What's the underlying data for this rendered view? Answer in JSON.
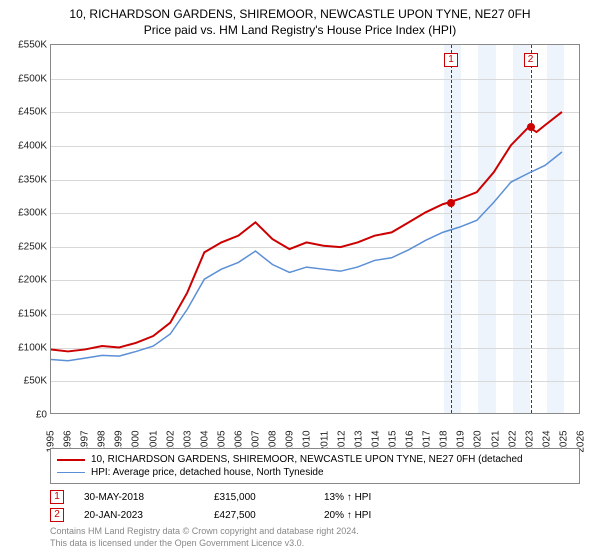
{
  "title_line1": "10, RICHARDSON GARDENS, SHIREMOOR, NEWCASTLE UPON TYNE, NE27 0FH",
  "title_line2": "Price paid vs. HM Land Registry's House Price Index (HPI)",
  "chart": {
    "type": "line",
    "background_color": "#ffffff",
    "grid_color": "#d8d8d8",
    "border_color": "#888888",
    "xlim": [
      1995,
      2026
    ],
    "x_ticks": [
      1995,
      1996,
      1997,
      1998,
      1999,
      2000,
      2001,
      2002,
      2003,
      2004,
      2005,
      2006,
      2007,
      2008,
      2009,
      2010,
      2011,
      2012,
      2013,
      2014,
      2015,
      2016,
      2017,
      2018,
      2019,
      2020,
      2021,
      2022,
      2023,
      2024,
      2025,
      2026
    ],
    "ylim": [
      0,
      550000
    ],
    "y_ticks": [
      0,
      50000,
      100000,
      150000,
      200000,
      250000,
      300000,
      350000,
      400000,
      450000,
      500000,
      550000
    ],
    "y_tick_labels": [
      "£0",
      "£50K",
      "£100K",
      "£150K",
      "£200K",
      "£250K",
      "£300K",
      "£350K",
      "£400K",
      "£450K",
      "£500K",
      "£550K"
    ],
    "shaded_bands": [
      {
        "from": 2018,
        "to": 2019,
        "color": "#eef4fb"
      },
      {
        "from": 2020,
        "to": 2021,
        "color": "#eef4fb"
      },
      {
        "from": 2022,
        "to": 2023,
        "color": "#eef4fb"
      },
      {
        "from": 2024,
        "to": 2025,
        "color": "#eef4fb"
      }
    ],
    "series": [
      {
        "color": "#cc0000",
        "line_width": 2,
        "points": [
          [
            1995,
            95000
          ],
          [
            1996,
            92000
          ],
          [
            1997,
            95000
          ],
          [
            1998,
            100000
          ],
          [
            1999,
            98000
          ],
          [
            2000,
            105000
          ],
          [
            2001,
            115000
          ],
          [
            2002,
            135000
          ],
          [
            2003,
            180000
          ],
          [
            2004,
            240000
          ],
          [
            2005,
            255000
          ],
          [
            2006,
            265000
          ],
          [
            2007,
            285000
          ],
          [
            2008,
            260000
          ],
          [
            2009,
            245000
          ],
          [
            2010,
            255000
          ],
          [
            2011,
            250000
          ],
          [
            2012,
            248000
          ],
          [
            2013,
            255000
          ],
          [
            2014,
            265000
          ],
          [
            2015,
            270000
          ],
          [
            2016,
            285000
          ],
          [
            2017,
            300000
          ],
          [
            2018,
            312000
          ],
          [
            2018.4,
            315000
          ],
          [
            2019,
            320000
          ],
          [
            2020,
            330000
          ],
          [
            2021,
            360000
          ],
          [
            2022,
            400000
          ],
          [
            2023.05,
            427500
          ],
          [
            2023.5,
            420000
          ],
          [
            2024,
            430000
          ],
          [
            2025,
            450000
          ]
        ]
      },
      {
        "color": "#5b8fd6",
        "line_width": 1.5,
        "points": [
          [
            1995,
            80000
          ],
          [
            1996,
            78000
          ],
          [
            1997,
            82000
          ],
          [
            1998,
            86000
          ],
          [
            1999,
            85000
          ],
          [
            2000,
            92000
          ],
          [
            2001,
            100000
          ],
          [
            2002,
            118000
          ],
          [
            2003,
            155000
          ],
          [
            2004,
            200000
          ],
          [
            2005,
            215000
          ],
          [
            2006,
            225000
          ],
          [
            2007,
            242000
          ],
          [
            2008,
            222000
          ],
          [
            2009,
            210000
          ],
          [
            2010,
            218000
          ],
          [
            2011,
            215000
          ],
          [
            2012,
            212000
          ],
          [
            2013,
            218000
          ],
          [
            2014,
            228000
          ],
          [
            2015,
            232000
          ],
          [
            2016,
            244000
          ],
          [
            2017,
            258000
          ],
          [
            2018,
            270000
          ],
          [
            2019,
            278000
          ],
          [
            2020,
            288000
          ],
          [
            2021,
            315000
          ],
          [
            2022,
            345000
          ],
          [
            2023,
            358000
          ],
          [
            2024,
            370000
          ],
          [
            2025,
            390000
          ]
        ]
      }
    ],
    "markers": [
      {
        "n": "1",
        "x": 2018.4,
        "y": 315000
      },
      {
        "n": "2",
        "x": 2023.05,
        "y": 427500
      }
    ]
  },
  "legend": {
    "items": [
      {
        "color": "#cc0000",
        "width": 2,
        "label": "10, RICHARDSON GARDENS, SHIREMOOR, NEWCASTLE UPON TYNE, NE27 0FH (detached"
      },
      {
        "color": "#5b8fd6",
        "width": 1.5,
        "label": "HPI: Average price, detached house, North Tyneside"
      }
    ]
  },
  "marker_rows": [
    {
      "n": "1",
      "date": "30-MAY-2018",
      "price": "£315,000",
      "delta": "13% ↑ HPI"
    },
    {
      "n": "2",
      "date": "20-JAN-2023",
      "price": "£427,500",
      "delta": "20% ↑ HPI"
    }
  ],
  "footer_line1": "Contains HM Land Registry data © Crown copyright and database right 2024.",
  "footer_line2": "This data is licensed under the Open Government Licence v3.0."
}
